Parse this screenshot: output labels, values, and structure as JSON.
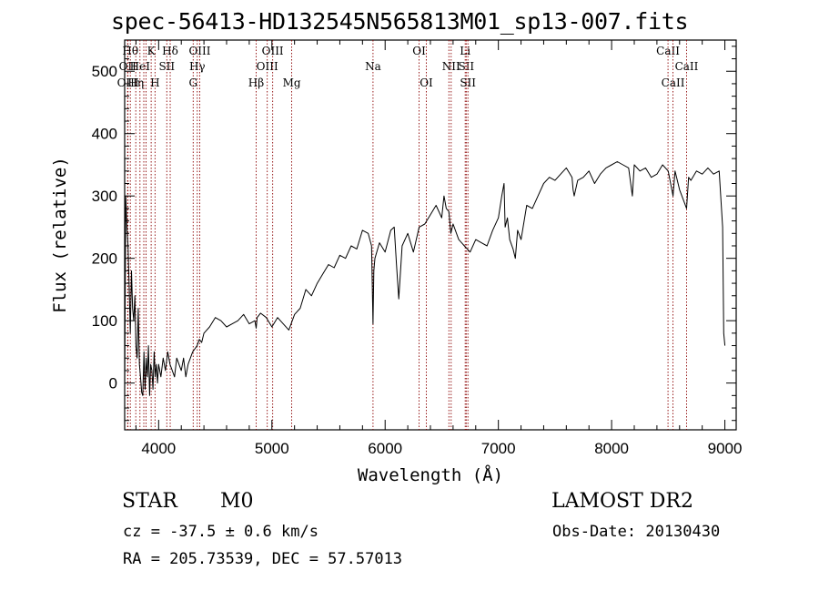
{
  "chart_data": {
    "type": "line",
    "title": "spec-56413-HD132545N565813M01_sp13-007.fits",
    "xlabel": "Wavelength (Å)",
    "ylabel": "Flux (relative)",
    "xlim": [
      3700,
      9100
    ],
    "ylim": [
      -75,
      550
    ],
    "xticks": [
      4000,
      5000,
      6000,
      7000,
      8000,
      9000
    ],
    "yticks": [
      0,
      100,
      200,
      300,
      400,
      500
    ],
    "grid": false,
    "line_color": "#000000",
    "marker_color": "#8b0000",
    "series": [
      {
        "x": [
          3700,
          3710,
          3720,
          3730,
          3740,
          3750,
          3760,
          3770,
          3780,
          3790,
          3800,
          3810,
          3820,
          3830,
          3840,
          3850,
          3860,
          3870,
          3880,
          3890,
          3900,
          3910,
          3920,
          3930,
          3940,
          3950,
          3960,
          3970,
          3980,
          3990,
          4000,
          4020,
          4040,
          4060,
          4080,
          4100,
          4120,
          4140,
          4160,
          4180,
          4200,
          4220,
          4240,
          4260,
          4280,
          4300,
          4320,
          4340,
          4360,
          4380,
          4400,
          4450,
          4500,
          4550,
          4600,
          4650,
          4700,
          4750,
          4800,
          4850,
          4861,
          4870,
          4900,
          4950,
          5000,
          5050,
          5100,
          5150,
          5200,
          5250,
          5300,
          5350,
          5400,
          5450,
          5500,
          5550,
          5600,
          5650,
          5700,
          5750,
          5800,
          5850,
          5880,
          5893,
          5900,
          5910,
          5950,
          6000,
          6050,
          6080,
          6100,
          6120,
          6150,
          6200,
          6250,
          6300,
          6350,
          6400,
          6450,
          6500,
          6520,
          6540,
          6563,
          6580,
          6600,
          6650,
          6700,
          6750,
          6800,
          6850,
          6900,
          6950,
          7000,
          7030,
          7050,
          7060,
          7080,
          7100,
          7130,
          7150,
          7170,
          7200,
          7250,
          7300,
          7350,
          7400,
          7450,
          7500,
          7550,
          7600,
          7650,
          7660,
          7670,
          7700,
          7750,
          7800,
          7850,
          7900,
          7950,
          8000,
          8050,
          8100,
          8150,
          8183,
          8200,
          8250,
          8300,
          8350,
          8400,
          8450,
          8500,
          8542,
          8560,
          8600,
          8662,
          8680,
          8700,
          8750,
          8800,
          8850,
          8900,
          8950,
          8980,
          8990,
          9000
        ],
        "y": [
          -10,
          300,
          250,
          220,
          150,
          80,
          180,
          120,
          100,
          140,
          60,
          40,
          120,
          30,
          10,
          -15,
          -20,
          50,
          -10,
          40,
          10,
          60,
          -20,
          30,
          20,
          -10,
          50,
          10,
          30,
          0,
          30,
          10,
          40,
          20,
          50,
          30,
          20,
          10,
          40,
          30,
          20,
          40,
          10,
          30,
          40,
          50,
          55,
          60,
          70,
          65,
          80,
          90,
          105,
          100,
          90,
          95,
          100,
          110,
          95,
          100,
          88,
          105,
          112,
          105,
          90,
          105,
          95,
          85,
          110,
          120,
          150,
          140,
          160,
          175,
          190,
          185,
          205,
          200,
          220,
          215,
          245,
          240,
          220,
          95,
          180,
          200,
          225,
          210,
          245,
          250,
          190,
          135,
          220,
          240,
          210,
          250,
          255,
          270,
          285,
          265,
          300,
          280,
          275,
          240,
          255,
          230,
          220,
          210,
          230,
          225,
          220,
          245,
          265,
          300,
          320,
          250,
          265,
          230,
          215,
          200,
          245,
          230,
          285,
          280,
          300,
          320,
          330,
          325,
          335,
          345,
          330,
          310,
          300,
          325,
          330,
          340,
          320,
          335,
          345,
          350,
          355,
          350,
          345,
          300,
          350,
          340,
          345,
          330,
          335,
          350,
          340,
          300,
          340,
          310,
          280,
          330,
          325,
          340,
          335,
          345,
          335,
          340,
          250,
          80,
          60
        ]
      }
    ],
    "line_markers": [
      {
        "x": 3726,
        "label": "OII",
        "row": 1
      },
      {
        "x": 3729,
        "label": "OIII",
        "row": 2
      },
      {
        "x": 3750,
        "label": "Hθ",
        "row": 0
      },
      {
        "x": 3798,
        "label": "Hη",
        "row": 2
      },
      {
        "x": 3835,
        "label": "HeI",
        "row": 1
      },
      {
        "x": 3869,
        "label": "",
        "row": 3
      },
      {
        "x": 3889,
        "label": "",
        "row": 3
      },
      {
        "x": 3934,
        "label": "K",
        "row": 0
      },
      {
        "x": 3968,
        "label": "H",
        "row": 2
      },
      {
        "x": 4072,
        "label": "SII",
        "row": 1
      },
      {
        "x": 4102,
        "label": "Hδ",
        "row": 0
      },
      {
        "x": 4305,
        "label": "G",
        "row": 2
      },
      {
        "x": 4341,
        "label": "Hγ",
        "row": 1
      },
      {
        "x": 4363,
        "label": "OIII",
        "row": 0
      },
      {
        "x": 4861,
        "label": "Hβ",
        "row": 2
      },
      {
        "x": 4959,
        "label": "OIII",
        "row": 1
      },
      {
        "x": 5007,
        "label": "OIII",
        "row": 0
      },
      {
        "x": 5175,
        "label": "Mg",
        "row": 2
      },
      {
        "x": 5893,
        "label": "Na",
        "row": 1
      },
      {
        "x": 6300,
        "label": "OI",
        "row": 0
      },
      {
        "x": 6364,
        "label": "OI",
        "row": 2
      },
      {
        "x": 6563,
        "label": "",
        "row": 3
      },
      {
        "x": 6583,
        "label": "NII",
        "row": 1
      },
      {
        "x": 6707,
        "label": "Li",
        "row": 0
      },
      {
        "x": 6716,
        "label": "SII",
        "row": 1
      },
      {
        "x": 6731,
        "label": "SII",
        "row": 2
      },
      {
        "x": 8498,
        "label": "CaII",
        "row": 0
      },
      {
        "x": 8542,
        "label": "CaII",
        "row": 2
      },
      {
        "x": 8662,
        "label": "CaII",
        "row": 1
      }
    ]
  },
  "info": {
    "object_class": "STAR",
    "subclass": "M0",
    "survey": "LAMOST DR2",
    "velocity": "cz = -37.5 ± 0.6 km/s",
    "obs_date": "Obs-Date: 20130430",
    "coords": "RA = 205.73539, DEC =  57.57013"
  }
}
